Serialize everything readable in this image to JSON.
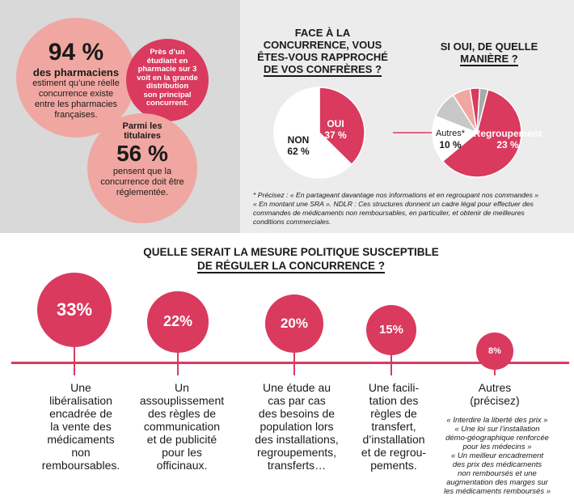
{
  "left": {
    "stat1_value": "94 %",
    "stat1_subject": "des pharmaciens",
    "stat1_text": [
      "estiment qu’une réelle",
      "concurrence existe",
      "entre les pharmacies",
      "françaises."
    ],
    "bubble_text": [
      "Près d’un",
      "étudiant en",
      "pharmacie sur 3",
      "voit en la grande",
      "distribution",
      "son principal",
      "concurrent."
    ],
    "stat2_intro": [
      "Parmi les",
      "titulaires"
    ],
    "stat2_value": "56 %",
    "stat2_text": [
      "pensent que la",
      "concurrence doit être",
      "réglementée."
    ]
  },
  "q1": {
    "title": [
      "FACE À LA",
      "CONCURRENCE, VOUS",
      "ÊTES-VOUS RAPPROCHÉ",
      "DE VOS CONFRÈRES ?"
    ]
  },
  "q2": {
    "title": [
      "SI OUI, DE QUELLE",
      "MANIÈRE ?"
    ]
  },
  "footnote": {
    "line1": "* Précisez : « En partageant davantage nos informations et en regroupant nos commandes »",
    "line2": "« En montant une SRA ». NDLR : Ces structures donnent un cadre légal pour effectuer des",
    "line3": "commandes de médicaments non remboursables, en particulier, et obtenir de meilleures",
    "line4": "conditions commerciales."
  },
  "q3": {
    "title1": "QUELLE SERAIT LA MESURE POLITIQUE SUSCEPTIBLE",
    "title2": "DE RÉGULER LA CONCURRENCE ?"
  },
  "colors": {
    "pink": "#d93a5e",
    "salmon": "#f1a7a1",
    "grey": "#c8c8c8",
    "darkgrey": "#a9a9a9"
  },
  "chart_data": [
    {
      "type": "pie",
      "categories": [
        "OUI",
        "NON"
      ],
      "values": [
        37,
        62
      ],
      "labels": [
        "37 %",
        "62 %"
      ]
    },
    {
      "type": "pie",
      "categories": [
        "Regroupement",
        "Autres*"
      ],
      "values": [
        23,
        10
      ],
      "labels": [
        "23 %",
        "10 %"
      ]
    },
    {
      "type": "bar",
      "categories": [
        "Une libéralisation encadrée de la vente des médicaments non remboursables.",
        "Un assouplissement des règles de communication et de publicité pour les officinaux.",
        "Une étude au cas par cas des besoins de population lors des installations, regroupements, transferts…",
        "Une facilitation des règles de transfert, d’installation et de regroupements.",
        "Autres (précisez)"
      ],
      "values": [
        33,
        22,
        20,
        15,
        8
      ],
      "labels": [
        "33%",
        "22%",
        "20%",
        "15%",
        "8%"
      ]
    }
  ],
  "measures": [
    {
      "lines": [
        "Une",
        "libéralisation",
        "encadrée de",
        "la vente des",
        "médicaments",
        "non",
        "remboursables."
      ]
    },
    {
      "lines": [
        "Un",
        "assouplissement",
        "des règles de",
        "communication",
        "et de publicité",
        "pour les",
        "officinaux."
      ]
    },
    {
      "lines": [
        "Une étude au",
        "cas par cas",
        "des besoins de",
        "population lors",
        "des installations,",
        "regroupements,",
        "transferts…"
      ]
    },
    {
      "lines": [
        "Une facili-",
        "tation des",
        "règles de",
        "transfert,",
        "d’installation",
        "et de regrou-",
        "pements."
      ]
    },
    {
      "lines": [
        "Autres",
        "(précisez)"
      ]
    }
  ],
  "autres_quotes": [
    "« Interdire la liberté des prix »",
    "« Une loi sur l’installation",
    "démo-géographique renforcée",
    "pour les médecins »",
    "« Un meilleur encadrement",
    "des prix des médicaments",
    "non remboursés et une",
    "augmentation des marges sur",
    "les médicaments remboursés »"
  ]
}
